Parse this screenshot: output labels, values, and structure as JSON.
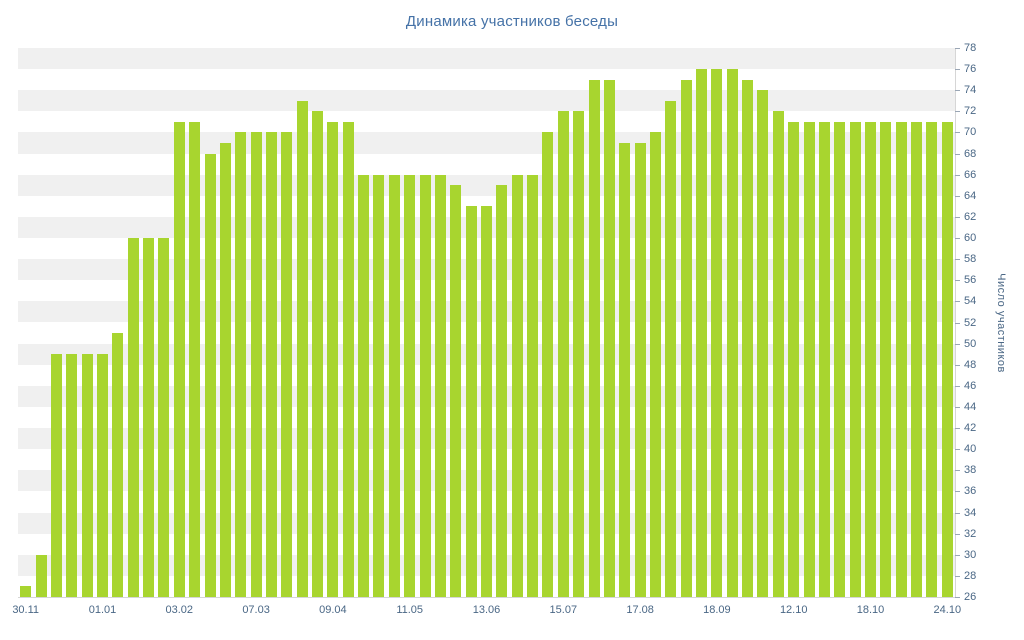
{
  "title": "Динамика участников беседы",
  "chart_data": {
    "type": "bar",
    "title": "Динамика участников беседы",
    "xlabel": "",
    "ylabel": "Число участников",
    "ylim": [
      26,
      78
    ],
    "y_tick_step": 2,
    "grid": "alternating-horizontal-bands",
    "legend": "none",
    "x_tick_labels": [
      "30.11",
      "01.01",
      "03.02",
      "07.03",
      "09.04",
      "11.05",
      "13.06",
      "15.07",
      "17.08",
      "18.09",
      "12.10",
      "18.10",
      "24.10"
    ],
    "x_tick_positions": [
      0,
      5,
      10,
      15,
      20,
      25,
      30,
      35,
      40,
      45,
      50,
      55,
      60
    ],
    "values": [
      27,
      30,
      49,
      49,
      49,
      49,
      51,
      60,
      60,
      60,
      71,
      71,
      68,
      69,
      70,
      70,
      70,
      70,
      73,
      72,
      71,
      71,
      66,
      66,
      66,
      66,
      66,
      66,
      65,
      63,
      63,
      65,
      66,
      66,
      70,
      72,
      72,
      75,
      75,
      69,
      69,
      70,
      73,
      75,
      76,
      76,
      76,
      75,
      74,
      72,
      71,
      71,
      71,
      71,
      71,
      71,
      71,
      71,
      71,
      71,
      71
    ],
    "bar_color": "#a8d52f",
    "band_color": "#f0f0f0",
    "axis_line_color": "#d6d6d6",
    "label_color": "#4a6785",
    "title_color": "#4572a7"
  }
}
